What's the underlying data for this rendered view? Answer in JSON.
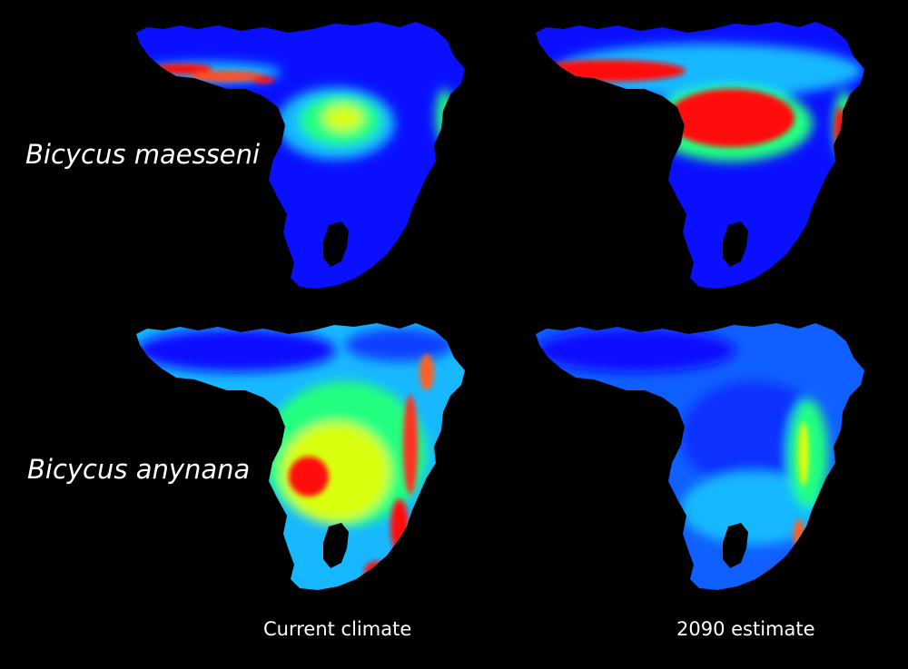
{
  "species_labels": {
    "row1": "Bicycus maesseni",
    "row2": "Bicycus anynana"
  },
  "column_labels": {
    "col1": "Current climate",
    "col2": "2090 estimate"
  },
  "colors": {
    "background": "#000000",
    "low": "#0a10ff",
    "low_mid": "#18b8ff",
    "mid": "#20ff80",
    "mid_high": "#d8ff10",
    "high": "#ff1010",
    "text": "#ffffff"
  },
  "panels": [
    {
      "species": "Bicycus maesseni",
      "scenario": "Current climate"
    },
    {
      "species": "Bicycus maesseni",
      "scenario": "2090 estimate"
    },
    {
      "species": "Bicycus anynana",
      "scenario": "Current climate"
    },
    {
      "species": "Bicycus anynana",
      "scenario": "2090 estimate"
    }
  ]
}
